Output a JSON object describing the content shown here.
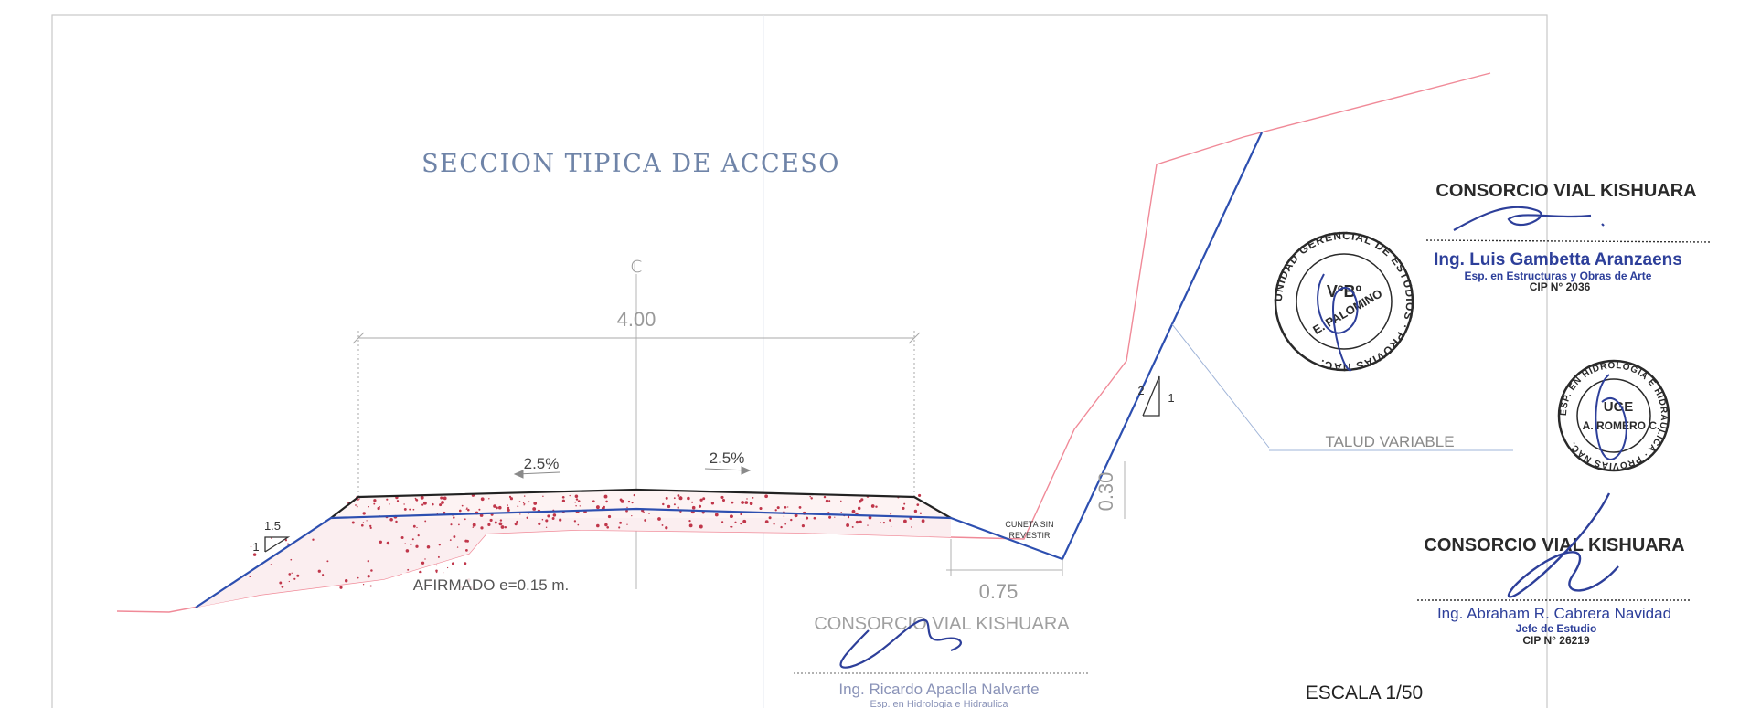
{
  "drawing": {
    "title": "SECCION TIPICA DE ACCESO",
    "centerline_symbol": "ℂ",
    "width_dimension": "4.00",
    "slope_left": "2.5%",
    "slope_right": "2.5%",
    "fill_slope": {
      "horizontal": "1.5",
      "vertical": "1"
    },
    "cut_slope": {
      "vertical": "2",
      "horizontal": "1"
    },
    "afirmado_label": "AFIRMADO e=0.15 m.",
    "cuneta_label_line1": "CUNETA SIN",
    "cuneta_label_line2": "REVESTIR",
    "depth_dimension": "0.30",
    "ditch_width_dimension": "0.75",
    "talud_label": "TALUD VARIABLE",
    "scale": "ESCALA 1/50"
  },
  "signatures": {
    "top_right": {
      "company": "CONSORCIO VIAL KISHUARA",
      "name": "Ing. Luis Gambetta Aranzaens",
      "title": "Esp. en Estructuras y Obras de Arte",
      "cip": "CIP N° 2036"
    },
    "bottom_right": {
      "company": "CONSORCIO VIAL KISHUARA",
      "name": "Ing. Abraham R. Cabrera Navidad",
      "title": "Jefe de Estudio",
      "cip": "CIP N° 26219"
    },
    "bottom_center": {
      "company": "CONSORCIO VIAL KISHUARA",
      "name": "Ing. Ricardo Apaclla Nalvarte",
      "title": "Esp. en Hidrologia e Hidraulica"
    }
  },
  "stamps": {
    "stamp1": {
      "ring_text": "UNIDAD GERENCIAL DE ESTUDIOS · PROVIAS NAC.",
      "center_line1": "VºBº",
      "center_line2": "E. PALOMINO"
    },
    "stamp2": {
      "ring_text": "ESP. EN HIDROLOGIA E HIDRAULICA · PROVIAS NAC.",
      "center_line1": "UGE",
      "center_line2": "A. ROMERO C."
    }
  },
  "colors": {
    "border": "#c9c9c9",
    "terrain": "#f08a98",
    "road_blue": "#2d4fb0",
    "pavement_black": "#222222",
    "fill_dots": "#c0364a",
    "dimension_gray": "#9a9a9a",
    "title_blue": "#6f84a8",
    "signature_blue": "#2d3f9a"
  }
}
